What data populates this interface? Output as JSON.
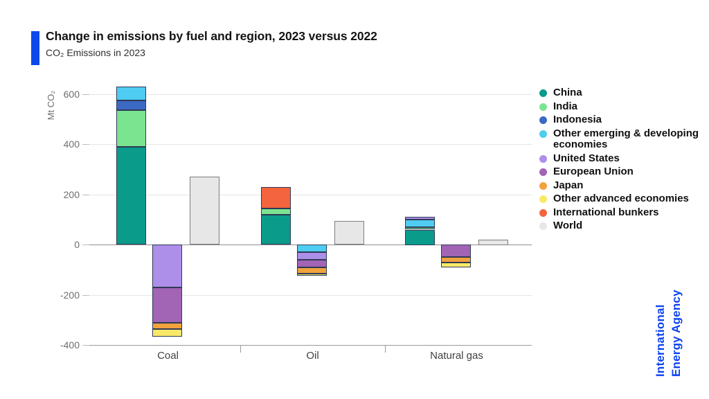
{
  "header": {
    "title": "Change in emissions by fuel and region, 2023 versus 2022",
    "subtitle": "CO₂ Emissions in 2023"
  },
  "branding": {
    "line1": "International",
    "line2": "Energy Agency",
    "color": "#0c43f2",
    "accent_color": "#0c49ec"
  },
  "chart_data": {
    "type": "bar",
    "stacked": true,
    "title": "Change in emissions by fuel and region, 2023 versus 2022",
    "subtitle": "CO₂ Emissions in 2023",
    "units": "Mt CO₂",
    "ylabel": "Mt CO₂",
    "ylim": [
      -400,
      600
    ],
    "y_ticks": [
      600,
      400,
      200,
      0,
      -200,
      -400
    ],
    "grid": "horizontal",
    "legend_position": "right",
    "categories": [
      "Coal",
      "Oil",
      "Natural gas"
    ],
    "series": [
      {
        "name": "China",
        "color": "#0a9b8b",
        "values": [
          390,
          120,
          60
        ]
      },
      {
        "name": "India",
        "color": "#7be491",
        "values": [
          145,
          25,
          10
        ]
      },
      {
        "name": "Indonesia",
        "color": "#3c69c4",
        "values": [
          40,
          0,
          0
        ]
      },
      {
        "name": "Other emerging & developing economies",
        "color": "#4fccf1",
        "values": [
          55,
          -30,
          30
        ]
      },
      {
        "name": "United States",
        "color": "#ad8ee9",
        "values": [
          -170,
          -30,
          10
        ]
      },
      {
        "name": "European Union",
        "color": "#a264b5",
        "values": [
          -140,
          -30,
          -50
        ]
      },
      {
        "name": "Japan",
        "color": "#f1a23d",
        "values": [
          -25,
          -25,
          -20
        ]
      },
      {
        "name": "Other advanced economies",
        "color": "#f9e967",
        "values": [
          -30,
          -10,
          -20
        ]
      },
      {
        "name": "International bunkers",
        "color": "#f4643e",
        "values": [
          0,
          85,
          0
        ]
      },
      {
        "name": "World",
        "color": "#e7e7e7",
        "values": [
          270,
          95,
          20
        ]
      }
    ]
  }
}
